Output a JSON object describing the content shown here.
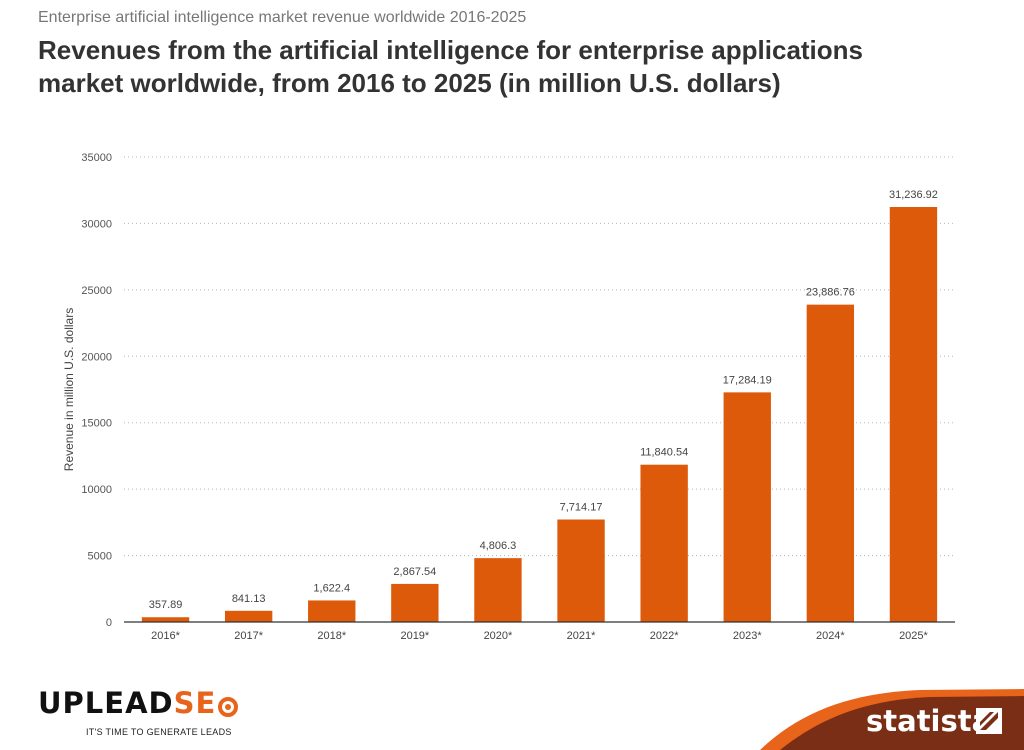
{
  "header": {
    "supertitle": "Enterprise artificial intelligence market revenue worldwide 2016-2025",
    "title": "Revenues from the artificial intelligence for enterprise applications market worldwide, from 2016 to 2025 (in million U.S. dollars)"
  },
  "chart_data": {
    "type": "bar",
    "title": "Revenues from the artificial intelligence for enterprise applications market worldwide, from 2016 to 2025 (in million U.S. dollars)",
    "xlabel": "",
    "ylabel": "Revenue in million U.S. dollars",
    "ylim": [
      0,
      35000
    ],
    "yticks": [
      0,
      5000,
      10000,
      15000,
      20000,
      25000,
      30000,
      35000
    ],
    "grid": true,
    "bar_color": "#dc5a0a",
    "categories": [
      "2016*",
      "2017*",
      "2018*",
      "2019*",
      "2020*",
      "2021*",
      "2022*",
      "2023*",
      "2024*",
      "2025*"
    ],
    "values": [
      357.89,
      841.13,
      1622.4,
      2867.54,
      4806.3,
      7714.17,
      11840.54,
      17284.19,
      23886.76,
      31236.92
    ],
    "value_labels": [
      "357.89",
      "841.13",
      "1,622.4",
      "2,867.54",
      "4,806.3",
      "7,714.17",
      "11,840.54",
      "17,284.19",
      "23,886.76",
      "31,236.92"
    ]
  },
  "footer": {
    "logo_part1": "UPLEAD",
    "logo_part2": "SE",
    "tagline": "IT'S TIME TO GENERATE LEADS",
    "source_brand": "statista",
    "brand_color": "#e8641b",
    "statista_swoosh_color": "#7a2e16"
  }
}
